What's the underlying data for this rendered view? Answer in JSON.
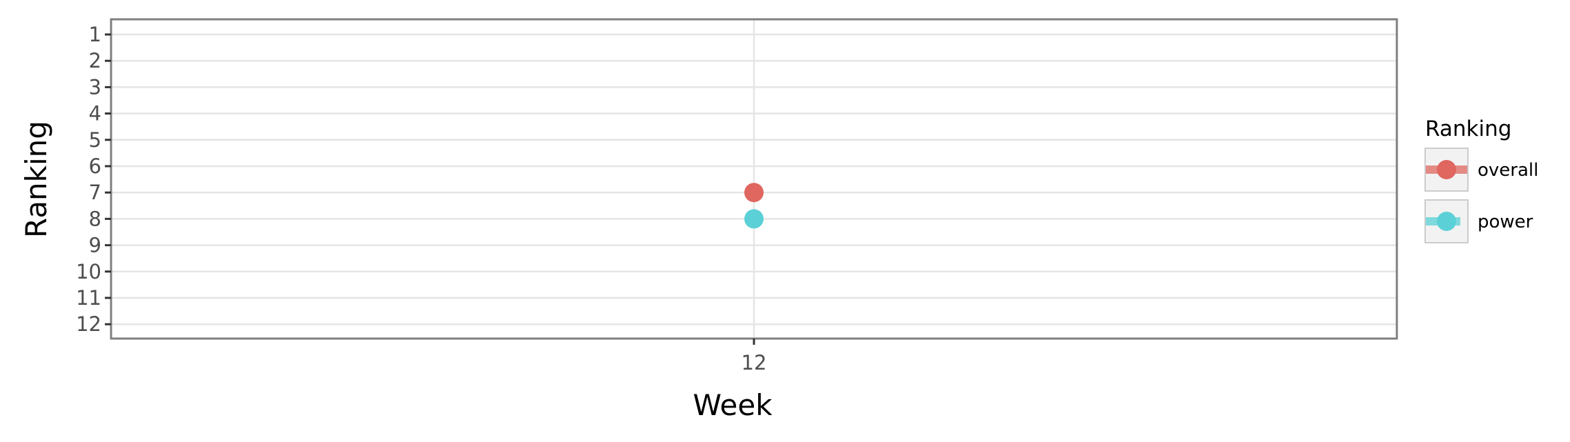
{
  "chart_data": {
    "type": "line",
    "xlabel": "Week",
    "ylabel": "Ranking",
    "x_ticks": [
      "12"
    ],
    "y_ticks": [
      1,
      2,
      3,
      4,
      5,
      6,
      7,
      8,
      9,
      10,
      11,
      12
    ],
    "ylim": [
      1,
      12
    ],
    "y_reversed": true,
    "grid": true,
    "legend": {
      "title": "Ranking",
      "placement": "right",
      "entries": [
        {
          "label": "overall",
          "color": "#e06660"
        },
        {
          "label": "power",
          "color": "#5bd1d7"
        }
      ]
    },
    "series": [
      {
        "name": "overall",
        "color": "#e06660",
        "x": [
          "12"
        ],
        "y": [
          7
        ]
      },
      {
        "name": "power",
        "color": "#5bd1d7",
        "x": [
          "12"
        ],
        "y": [
          8
        ]
      }
    ]
  }
}
